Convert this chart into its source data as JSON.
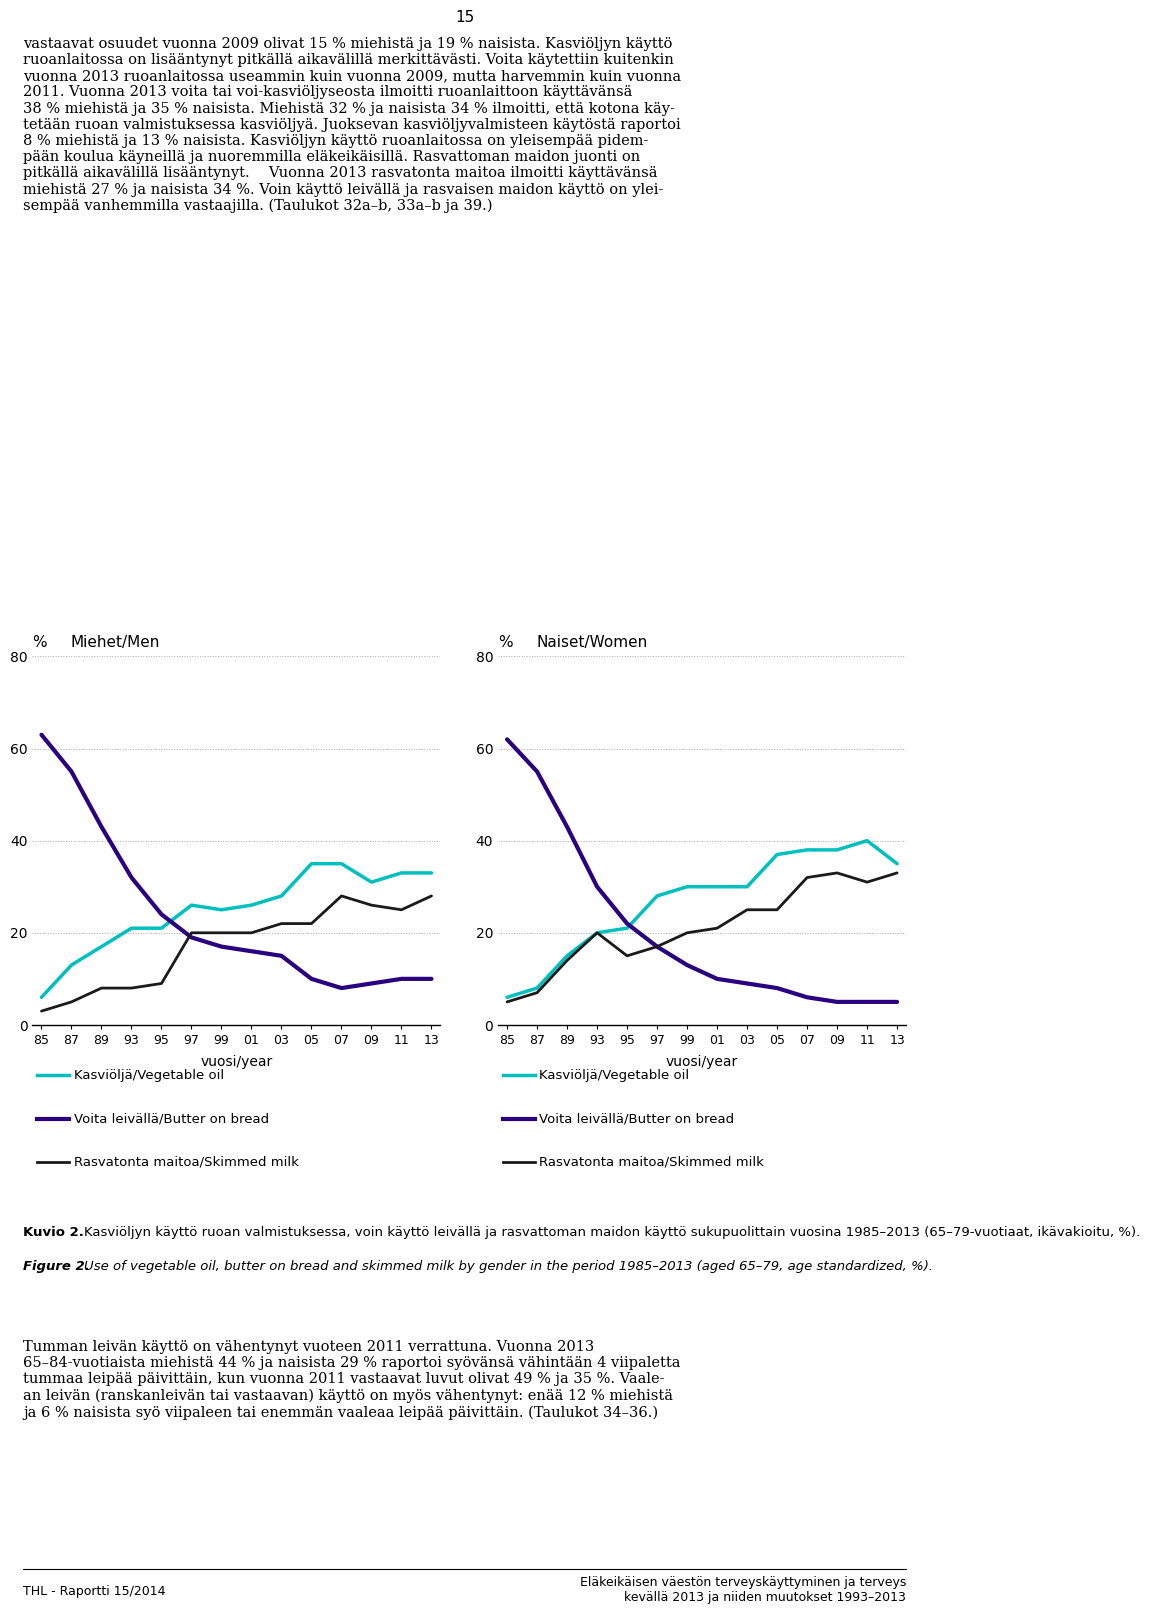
{
  "years": [
    85,
    87,
    89,
    93,
    95,
    97,
    99,
    1,
    3,
    5,
    7,
    9,
    11,
    13
  ],
  "men": {
    "vegetable_oil": [
      6,
      13,
      17,
      21,
      21,
      26,
      25,
      26,
      28,
      35,
      35,
      31,
      33,
      33
    ],
    "butter_bread": [
      63,
      55,
      43,
      32,
      24,
      19,
      17,
      16,
      15,
      10,
      8,
      9,
      10,
      10
    ],
    "skimmed_milk": [
      3,
      5,
      8,
      8,
      9,
      20,
      20,
      20,
      22,
      22,
      28,
      26,
      25,
      28
    ]
  },
  "women": {
    "vegetable_oil": [
      6,
      8,
      15,
      20,
      21,
      28,
      30,
      30,
      30,
      37,
      38,
      38,
      40,
      35
    ],
    "butter_bread": [
      62,
      55,
      43,
      30,
      22,
      17,
      13,
      10,
      9,
      8,
      6,
      5,
      5,
      5
    ],
    "skimmed_milk": [
      5,
      7,
      14,
      20,
      15,
      17,
      20,
      21,
      25,
      25,
      32,
      33,
      31,
      33
    ]
  },
  "x_labels": [
    "85",
    "87",
    "89",
    "93",
    "95",
    "97",
    "99",
    "01",
    "03",
    "05",
    "07",
    "09",
    "11",
    "13"
  ],
  "ylim": [
    0,
    80
  ],
  "yticks": [
    0,
    20,
    40,
    60,
    80
  ],
  "color_vegetable": "#00BFBF",
  "color_butter": "#2B0080",
  "color_skimmed": "#1A1A1A",
  "title_men": "Miehet/Men",
  "title_women": "Naiset/Women",
  "ylabel": "%",
  "xlabel": "vuosi/year",
  "legend_veg": "Kasviöljä/Vegetable oil",
  "legend_but": "Voita leivällä/Butter on bread",
  "legend_ski": "Rasvatonta maitoa/Skimmed milk",
  "page_number": "15",
  "caption_fi_bold": "Kuvio 2.",
  "caption_fi_rest": "Kasviöljyn käyttö ruoan valmistuksessa, voin käyttö leivällä ja rasvattoman maidon käyttö sukupuolittain vuosina 1985–2013 (65–79-vuotiaat, ikävakioitu, %).",
  "caption_en_bold": "Figure 2.",
  "caption_en_rest": "Use of vegetable oil, butter on bread and skimmed milk by gender in the period 1985–2013 (aged 65–79, age standardized, %).",
  "footer_left": "THL - Raportti 15/2014",
  "footer_right_line1": "Eläkeikäisen väestön terveyskäyttyminen ja terveys",
  "footer_right_line2": "kevällä 2013 ja niiden muutokset 1993–2013"
}
